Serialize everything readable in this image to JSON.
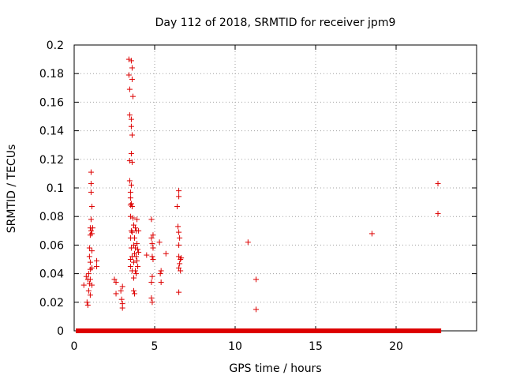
{
  "chart_data": {
    "type": "scatter",
    "title": "Day 112 of 2018, SRMTID for receiver jpm9",
    "xlabel": "GPS time / hours",
    "ylabel": "SRMTID / TECUs",
    "xlim": [
      0,
      25
    ],
    "ylim": [
      0,
      0.2
    ],
    "xticks": [
      0,
      5,
      10,
      15,
      20
    ],
    "xtick_labels": [
      "0",
      "5",
      "10",
      "15",
      "20"
    ],
    "yticks": [
      0,
      0.02,
      0.04,
      0.06,
      0.08,
      0.1,
      0.12,
      0.14,
      0.16,
      0.18,
      0.2
    ],
    "ytick_labels": [
      "0",
      "0.02",
      "0.04",
      "0.06",
      "0.08",
      "0.1",
      "0.12",
      "0.14",
      "0.16",
      "0.18",
      "0.2"
    ],
    "grid": true,
    "legend": "none",
    "marker": "+",
    "series": [
      {
        "name": "SRMTID",
        "color": "#dd0000",
        "points": [
          [
            0.6,
            0.032
          ],
          [
            0.75,
            0.038
          ],
          [
            0.8,
            0.02
          ],
          [
            0.85,
            0.036
          ],
          [
            0.85,
            0.018
          ],
          [
            0.9,
            0.028
          ],
          [
            0.9,
            0.04
          ],
          [
            0.95,
            0.033
          ],
          [
            0.95,
            0.052
          ],
          [
            0.95,
            0.058
          ],
          [
            1.0,
            0.072
          ],
          [
            1.0,
            0.067
          ],
          [
            1.0,
            0.048
          ],
          [
            1.0,
            0.036
          ],
          [
            1.0,
            0.025
          ],
          [
            1.0,
            0.043
          ],
          [
            1.05,
            0.111
          ],
          [
            1.05,
            0.103
          ],
          [
            1.05,
            0.097
          ],
          [
            1.05,
            0.078
          ],
          [
            1.05,
            0.07
          ],
          [
            1.1,
            0.087
          ],
          [
            1.1,
            0.068
          ],
          [
            1.1,
            0.056
          ],
          [
            1.1,
            0.044
          ],
          [
            1.1,
            0.032
          ],
          [
            1.15,
            0.072
          ],
          [
            1.4,
            0.049
          ],
          [
            1.4,
            0.045
          ],
          [
            2.5,
            0.036
          ],
          [
            2.6,
            0.034
          ],
          [
            2.6,
            0.026
          ],
          [
            2.9,
            0.028
          ],
          [
            2.95,
            0.022
          ],
          [
            3.0,
            0.019
          ],
          [
            3.0,
            0.016
          ],
          [
            3.0,
            0.031
          ],
          [
            3.4,
            0.19
          ],
          [
            3.4,
            0.179
          ],
          [
            3.45,
            0.169
          ],
          [
            3.45,
            0.151
          ],
          [
            3.45,
            0.119
          ],
          [
            3.45,
            0.105
          ],
          [
            3.5,
            0.097
          ],
          [
            3.5,
            0.093
          ],
          [
            3.5,
            0.088
          ],
          [
            3.5,
            0.08
          ],
          [
            3.5,
            0.065
          ],
          [
            3.5,
            0.045
          ],
          [
            3.5,
            0.05
          ],
          [
            3.55,
            0.189
          ],
          [
            3.55,
            0.148
          ],
          [
            3.55,
            0.143
          ],
          [
            3.55,
            0.124
          ],
          [
            3.55,
            0.102
          ],
          [
            3.55,
            0.089
          ],
          [
            3.55,
            0.07
          ],
          [
            3.55,
            0.058
          ],
          [
            3.6,
            0.184
          ],
          [
            3.6,
            0.176
          ],
          [
            3.6,
            0.137
          ],
          [
            3.6,
            0.118
          ],
          [
            3.6,
            0.087
          ],
          [
            3.6,
            0.069
          ],
          [
            3.6,
            0.052
          ],
          [
            3.6,
            0.042
          ],
          [
            3.65,
            0.164
          ],
          [
            3.65,
            0.079
          ],
          [
            3.7,
            0.074
          ],
          [
            3.7,
            0.06
          ],
          [
            3.7,
            0.048
          ],
          [
            3.7,
            0.037
          ],
          [
            3.7,
            0.028
          ],
          [
            3.75,
            0.065
          ],
          [
            3.75,
            0.054
          ],
          [
            3.75,
            0.026
          ],
          [
            3.8,
            0.072
          ],
          [
            3.8,
            0.058
          ],
          [
            3.8,
            0.042
          ],
          [
            3.85,
            0.07
          ],
          [
            3.85,
            0.052
          ],
          [
            3.85,
            0.04
          ],
          [
            3.9,
            0.078
          ],
          [
            3.9,
            0.061
          ],
          [
            3.9,
            0.049
          ],
          [
            3.95,
            0.057
          ],
          [
            3.95,
            0.045
          ],
          [
            4.0,
            0.07
          ],
          [
            4.0,
            0.055
          ],
          [
            4.5,
            0.053
          ],
          [
            4.8,
            0.078
          ],
          [
            4.8,
            0.065
          ],
          [
            4.8,
            0.034
          ],
          [
            4.8,
            0.023
          ],
          [
            4.85,
            0.061
          ],
          [
            4.85,
            0.052
          ],
          [
            4.85,
            0.038
          ],
          [
            4.85,
            0.02
          ],
          [
            4.9,
            0.067
          ],
          [
            4.9,
            0.058
          ],
          [
            4.9,
            0.05
          ],
          [
            5.3,
            0.062
          ],
          [
            5.35,
            0.04
          ],
          [
            5.4,
            0.034
          ],
          [
            5.4,
            0.042
          ],
          [
            5.7,
            0.054
          ],
          [
            6.4,
            0.087
          ],
          [
            6.45,
            0.073
          ],
          [
            6.5,
            0.098
          ],
          [
            6.5,
            0.094
          ],
          [
            6.5,
            0.069
          ],
          [
            6.5,
            0.06
          ],
          [
            6.5,
            0.052
          ],
          [
            6.5,
            0.044
          ],
          [
            6.55,
            0.065
          ],
          [
            6.55,
            0.047
          ],
          [
            6.6,
            0.05
          ],
          [
            6.6,
            0.042
          ],
          [
            6.5,
            0.027
          ],
          [
            6.65,
            0.051
          ],
          [
            10.8,
            0.062
          ],
          [
            11.3,
            0.036
          ],
          [
            11.3,
            0.015
          ],
          [
            18.5,
            0.068
          ],
          [
            22.6,
            0.103
          ],
          [
            22.6,
            0.082
          ]
        ],
        "zero_segments": [
          [
            0.1,
            22.8
          ]
        ],
        "zero_value": 0
      }
    ]
  }
}
